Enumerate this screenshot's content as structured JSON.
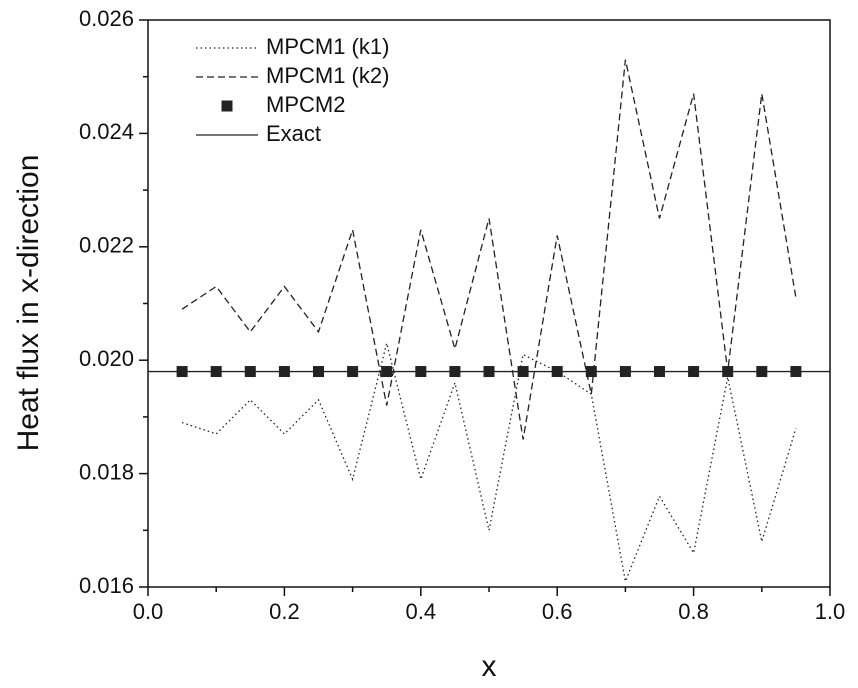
{
  "chart_data": {
    "type": "line",
    "xlabel": "x",
    "ylabel": "Heat flux in x-direction",
    "x": [
      0.05,
      0.1,
      0.15,
      0.2,
      0.25,
      0.3,
      0.35,
      0.4,
      0.45,
      0.5,
      0.55,
      0.6,
      0.65,
      0.7,
      0.75,
      0.8,
      0.85,
      0.9,
      0.95
    ],
    "series": [
      {
        "name": "MPCM1 (k1)",
        "color": "#222222",
        "dash": "dotted",
        "values": [
          0.0189,
          0.0187,
          0.0193,
          0.0187,
          0.0193,
          0.0179,
          0.0203,
          0.0179,
          0.0196,
          0.017,
          0.0201,
          0.0198,
          0.0194,
          0.0161,
          0.0176,
          0.0166,
          0.0197,
          0.0168,
          0.0188
        ]
      },
      {
        "name": "MPCM1 (k2)",
        "color": "#222222",
        "dash": "dashed",
        "values": [
          0.0209,
          0.0213,
          0.0205,
          0.0213,
          0.0205,
          0.0223,
          0.0192,
          0.0223,
          0.0202,
          0.0225,
          0.0186,
          0.0222,
          0.0194,
          0.0253,
          0.0225,
          0.0247,
          0.0198,
          0.0247,
          0.0211
        ]
      },
      {
        "name": "MPCM2",
        "color": "#222222",
        "marker": "square",
        "values": [
          0.0198,
          0.0198,
          0.0198,
          0.0198,
          0.0198,
          0.0198,
          0.0198,
          0.0198,
          0.0198,
          0.0198,
          0.0198,
          0.0198,
          0.0198,
          0.0198,
          0.0198,
          0.0198,
          0.0198,
          0.0198,
          0.0198
        ]
      },
      {
        "name": "Exact",
        "color": "#222222",
        "dash": "solid",
        "x": [
          0,
          1
        ],
        "values": [
          0.0198,
          0.0198
        ]
      }
    ],
    "xlim": [
      0,
      1
    ],
    "xticks": [
      {
        "value": 0,
        "label": "0.0"
      },
      0.2,
      0.4,
      0.6,
      0.8,
      {
        "value": 1,
        "label": "1.0"
      }
    ],
    "xminorticks": [
      0.1,
      0.3,
      0.5,
      0.7,
      0.9
    ],
    "ylim": [
      0.016,
      0.026
    ],
    "yticks": [
      0.016,
      0.018,
      {
        "value": 0.02,
        "label": "0.020"
      },
      0.022,
      0.024,
      0.026
    ],
    "yminorticks": [
      0.017,
      0.019,
      0.021,
      0.023,
      0.025
    ],
    "legend": "upper-left"
  }
}
